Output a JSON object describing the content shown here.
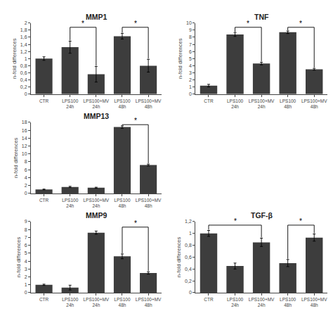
{
  "chart_data": [
    {
      "type": "bar",
      "title": "MMP1",
      "categories": [
        "CTR",
        "LPS100 24h",
        "LPS100+MV\n24h",
        "LPS100 48h",
        "LPS100+MV\n48h"
      ],
      "values": [
        1.0,
        1.32,
        0.56,
        1.63,
        0.8
      ],
      "errors": [
        0.05,
        0.17,
        0.22,
        0.08,
        0.18
      ],
      "color": "#3d3d3d",
      "ylabel": "n-fold differences",
      "grid": false,
      "ylim": [
        0,
        2.0
      ],
      "yticks": [
        0,
        {
          "value": 0.2,
          "label": "0,2"
        },
        {
          "value": 0.4,
          "label": "0,4"
        },
        {
          "value": 0.6,
          "label": "0,6"
        },
        {
          "value": 0.8,
          "label": "0,8"
        },
        1,
        {
          "value": 1.2,
          "label": "1,2"
        },
        {
          "value": 1.4,
          "label": "1,4"
        },
        {
          "value": 1.6,
          "label": "1,6"
        },
        {
          "value": 1.8,
          "label": "1,8"
        },
        2
      ],
      "annotations": [
        {
          "text": "*",
          "from": "LPS100 24h",
          "to": "LPS100+MV\n24h",
          "y": 1.88
        },
        {
          "text": "*",
          "from": "LPS100 48h",
          "to": "LPS100+MV\n48h",
          "y": 1.88
        }
      ]
    },
    {
      "type": "bar",
      "title": "MMP13",
      "categories": [
        "CTR",
        "LPS100 24h",
        "LPS100+MV\n24h",
        "LPS100 48h",
        "LPS100+MV\n48h"
      ],
      "values": [
        1.0,
        1.65,
        1.45,
        16.8,
        7.2
      ],
      "errors": [
        0.1,
        0.15,
        0.12,
        0.3,
        0.22
      ],
      "color": "#3d3d3d",
      "ylabel": "n-fold differences",
      "grid": false,
      "ylim": [
        0,
        18
      ],
      "yticks": [
        0,
        2,
        4,
        6,
        8,
        10,
        12,
        14,
        16,
        18
      ],
      "annotations": [
        {
          "text": "*",
          "from": "LPS100 48h",
          "to": "LPS100+MV\n48h",
          "y": 17.4
        }
      ]
    },
    {
      "type": "bar",
      "title": "MMP9",
      "categories": [
        "CTR",
        "LPS100 24h",
        "LPS100+MV\n24h",
        "LPS100 48h",
        "LPS100+MV\n48h"
      ],
      "values": [
        1.0,
        0.65,
        7.6,
        4.6,
        2.5
      ],
      "errors": [
        0.08,
        0.3,
        0.2,
        0.3,
        0.15
      ],
      "color": "#3d3d3d",
      "ylabel": "n-fold differences",
      "grid": false,
      "ylim": [
        0,
        9
      ],
      "yticks": [
        0,
        1,
        2,
        3,
        4,
        5,
        6,
        7,
        8,
        9
      ],
      "annotations": [
        {
          "text": "*",
          "from": "LPS100 48h",
          "to": "LPS100+MV\n48h",
          "y": 8.3
        }
      ]
    },
    {
      "type": "bar",
      "title": "TNF",
      "categories": [
        "CTR",
        "LPS100 24h",
        "LPS100+MV\n24h",
        "LPS100 48h",
        "LPS100+MV\n48h"
      ],
      "values": [
        1.2,
        8.4,
        4.3,
        8.7,
        3.5
      ],
      "errors": [
        0.18,
        0.28,
        0.18,
        0.18,
        0.13
      ],
      "color": "#3d3d3d",
      "ylabel": "n-fold differences",
      "grid": false,
      "ylim": [
        0,
        10
      ],
      "yticks": [
        0,
        1,
        2,
        3,
        4,
        5,
        6,
        7,
        8,
        9,
        10
      ],
      "annotations": [
        {
          "text": "*",
          "from": "LPS100 24h",
          "to": "LPS100+MV\n24h",
          "y": 9.4
        },
        {
          "text": "*",
          "from": "LPS100 48h",
          "to": "LPS100+MV\n48h",
          "y": 9.4
        }
      ]
    },
    {
      "type": "bar",
      "title": "TGF-β",
      "categories": [
        "CTR",
        "LPS100 24h",
        "LPS100+MV\n24h",
        "LPS100 48h",
        "LPS100+MV\n48h"
      ],
      "values": [
        1.0,
        0.45,
        0.85,
        0.5,
        0.93
      ],
      "errors": [
        0.05,
        0.05,
        0.07,
        0.06,
        0.06
      ],
      "color": "#3d3d3d",
      "ylabel": "n-fold differences",
      "grid": false,
      "ylim": [
        0,
        1.2
      ],
      "yticks": [
        0,
        {
          "value": 0.2,
          "label": "0,2"
        },
        {
          "value": 0.4,
          "label": "0,4"
        },
        {
          "value": 0.6,
          "label": "0,6"
        },
        {
          "value": 0.8,
          "label": "0,8"
        },
        1,
        {
          "value": 1.2,
          "label": "1,2"
        }
      ],
      "annotations": [
        {
          "text": "*",
          "from": "CTR",
          "to": "LPS100+MV\n24h",
          "y": 1.14
        },
        {
          "text": "*",
          "from": "LPS100 48h",
          "to": "LPS100+MV\n48h",
          "y": 1.14
        }
      ]
    }
  ]
}
